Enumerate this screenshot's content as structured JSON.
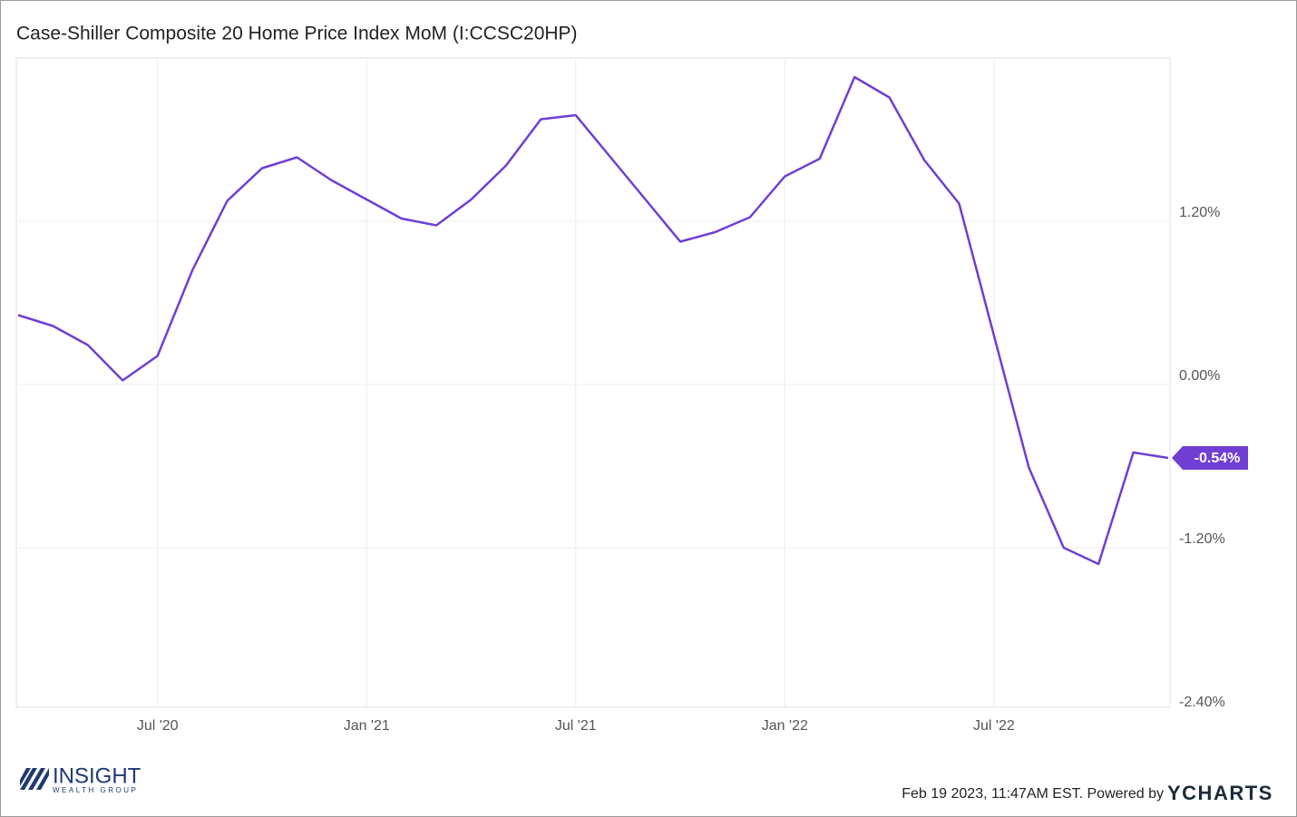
{
  "chart_data": {
    "type": "line",
    "title": "Case-Shiller Composite 20 Home Price Index MoM (I:CCSC20HP)",
    "x": [
      "2020-03",
      "2020-04",
      "2020-05",
      "2020-06",
      "2020-07",
      "2020-08",
      "2020-09",
      "2020-10",
      "2020-11",
      "2020-12",
      "2021-01",
      "2021-02",
      "2021-03",
      "2021-04",
      "2021-05",
      "2021-06",
      "2021-07",
      "2021-08",
      "2021-09",
      "2021-10",
      "2021-11",
      "2021-12",
      "2022-01",
      "2022-02",
      "2022-03",
      "2022-04",
      "2022-05",
      "2022-06",
      "2022-07",
      "2022-08",
      "2022-09",
      "2022-10",
      "2022-11",
      "2022-12"
    ],
    "series": [
      {
        "name": "Case-Shiller Composite 20 Home Price Index MoM",
        "color": "#6f3fd3",
        "values": [
          0.51,
          0.43,
          0.29,
          0.03,
          0.21,
          0.84,
          1.35,
          1.59,
          1.67,
          1.5,
          1.36,
          1.22,
          1.17,
          1.36,
          1.61,
          1.95,
          1.98,
          1.67,
          1.36,
          1.05,
          1.12,
          1.23,
          1.53,
          1.66,
          2.26,
          2.11,
          1.65,
          1.33,
          0.36,
          -0.61,
          -1.2,
          -1.32,
          -0.5,
          -0.54
        ],
        "value_labels": [
          null,
          null,
          null,
          null,
          null,
          null,
          null,
          null,
          null,
          null,
          null,
          null,
          null,
          null,
          null,
          null,
          null,
          null,
          null,
          null,
          null,
          null,
          null,
          null,
          null,
          null,
          null,
          null,
          null,
          null,
          null,
          null,
          null,
          "-0.54%"
        ]
      }
    ],
    "ylim": [
      -2.4,
      2.4
    ],
    "yticks": [
      {
        "value": -2.4,
        "label": "-2.40%"
      },
      {
        "value": -1.2,
        "label": "-1.20%"
      },
      {
        "value": 0,
        "label": "0.00%"
      },
      {
        "value": 1.2,
        "label": "1.20%"
      }
    ],
    "xticks": [
      {
        "value": "2020-07",
        "label": "Jul '20"
      },
      {
        "value": "2021-01",
        "label": "Jan '21"
      },
      {
        "value": "2021-07",
        "label": "Jul '21"
      },
      {
        "value": "2022-01",
        "label": "Jan '22"
      },
      {
        "value": "2022-07",
        "label": "Jul '22"
      }
    ],
    "grid": true
  },
  "footer": {
    "timestamp": "Feb 19 2023, 11:47AM EST. Powered by",
    "brand": "YCHARTS",
    "logo_main": "INSIGHT",
    "logo_sub": "WEALTH GROUP"
  }
}
